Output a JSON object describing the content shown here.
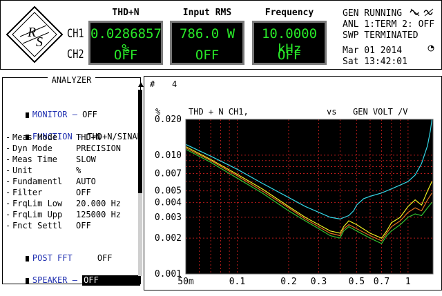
{
  "channels": [
    "CH1",
    "CH2"
  ],
  "meters": [
    {
      "header": "THD+N",
      "ch1": "0.0286857 %",
      "ch2": "OFF"
    },
    {
      "header": "Input RMS",
      "ch1": "786.0  W",
      "ch2": "OFF"
    },
    {
      "header": "Frequency",
      "ch1": "10.0000 kHz",
      "ch2": "OFF"
    }
  ],
  "status": {
    "gen": "GEN RUNNING",
    "anl": "ANL 1:TERM 2: OFF",
    "swp": "SWP TERMINATED",
    "date": "Mar 01 2014",
    "time": "Sat 13:42:01"
  },
  "analyzer": {
    "title": "ANALYZER",
    "monitor": {
      "label": "MONITOR",
      "value": "OFF"
    },
    "function": {
      "label": "FUNCTION",
      "value": "THD+N/SINAD"
    },
    "params": [
      {
        "label": "Meas Mode",
        "value": "THD+N"
      },
      {
        "label": "Dyn Mode",
        "value": "PRECISION"
      },
      {
        "label": "Meas Time",
        "value": "SLOW"
      },
      {
        "label": "Unit",
        "value": "%"
      },
      {
        "label": "Fundamentl",
        "value": "AUTO"
      },
      {
        "label": "Filter",
        "value": "OFF"
      },
      {
        "label": "FrqLim Low",
        "value": "20.000 Hz"
      },
      {
        "label": "FrqLim Upp",
        "value": "125000 Hz"
      },
      {
        "label": "Fnct Settl",
        "value": "OFF"
      }
    ],
    "post_fft": {
      "label": "POST FFT",
      "value": "OFF"
    },
    "speaker": {
      "label": "SPEAKER",
      "value": "OFF"
    }
  },
  "graph": {
    "index_label": "#",
    "index_value": "4",
    "unit": "%",
    "trace_label": "THD + N CH1,",
    "vs": "vs",
    "x_label": "GEN VOLT /V"
  },
  "chart_data": {
    "type": "line",
    "xscale": "log",
    "yscale": "log",
    "xlim": [
      0.05,
      1.4
    ],
    "ylim": [
      0.001,
      0.02
    ],
    "x_ticks": [
      {
        "v": 0.05,
        "t": "50m"
      },
      {
        "v": 0.1,
        "t": "0.1"
      },
      {
        "v": 0.2,
        "t": "0.2"
      },
      {
        "v": 0.3,
        "t": "0.3"
      },
      {
        "v": 0.5,
        "t": "0.5"
      },
      {
        "v": 0.7,
        "t": "0.7"
      },
      {
        "v": 1.0,
        "t": "1"
      }
    ],
    "y_ticks": [
      {
        "v": 0.02,
        "t": "0.020"
      },
      {
        "v": 0.01,
        "t": "0.010"
      },
      {
        "v": 0.007,
        "t": "0.007"
      },
      {
        "v": 0.005,
        "t": "0.005"
      },
      {
        "v": 0.004,
        "t": "0.004"
      },
      {
        "v": 0.003,
        "t": "0.003"
      },
      {
        "v": 0.002,
        "t": "0.002"
      },
      {
        "v": 0.001,
        "t": "0.001"
      }
    ],
    "grid": true,
    "series": [
      {
        "color": "#33d6e6",
        "x": [
          0.05,
          0.07,
          0.1,
          0.14,
          0.2,
          0.25,
          0.3,
          0.35,
          0.4,
          0.45,
          0.48,
          0.5,
          0.55,
          0.6,
          0.7,
          0.8,
          0.9,
          1.0,
          1.1,
          1.2,
          1.3,
          1.35,
          1.38
        ],
        "y": [
          0.0123,
          0.0098,
          0.0076,
          0.0058,
          0.0044,
          0.0037,
          0.0033,
          0.003,
          0.0029,
          0.0031,
          0.0034,
          0.0038,
          0.0043,
          0.0045,
          0.0048,
          0.0052,
          0.0056,
          0.006,
          0.0068,
          0.0085,
          0.012,
          0.016,
          0.02
        ]
      },
      {
        "color": "#f0f020",
        "x": [
          0.05,
          0.07,
          0.1,
          0.14,
          0.2,
          0.25,
          0.3,
          0.35,
          0.4,
          0.42,
          0.45,
          0.5,
          0.6,
          0.7,
          0.75,
          0.8,
          0.9,
          1.0,
          1.1,
          1.2,
          1.3,
          1.38
        ],
        "y": [
          0.0118,
          0.0092,
          0.0069,
          0.0052,
          0.0037,
          0.003,
          0.0026,
          0.0023,
          0.0022,
          0.0025,
          0.0028,
          0.0026,
          0.0022,
          0.002,
          0.0023,
          0.0027,
          0.003,
          0.0037,
          0.0042,
          0.0038,
          0.005,
          0.006
        ]
      },
      {
        "color": "#e07020",
        "x": [
          0.05,
          0.07,
          0.1,
          0.14,
          0.2,
          0.25,
          0.3,
          0.35,
          0.4,
          0.42,
          0.45,
          0.5,
          0.6,
          0.7,
          0.75,
          0.8,
          0.9,
          1.0,
          1.1,
          1.2,
          1.3,
          1.38
        ],
        "y": [
          0.0115,
          0.009,
          0.0067,
          0.005,
          0.0036,
          0.0029,
          0.0025,
          0.0022,
          0.0021,
          0.0024,
          0.0026,
          0.0024,
          0.0021,
          0.0019,
          0.0022,
          0.0025,
          0.0028,
          0.0033,
          0.0036,
          0.0034,
          0.0042,
          0.0048
        ]
      },
      {
        "color": "#30c030",
        "x": [
          0.05,
          0.07,
          0.1,
          0.14,
          0.2,
          0.25,
          0.3,
          0.35,
          0.4,
          0.42,
          0.45,
          0.5,
          0.6,
          0.7,
          0.75,
          0.8,
          0.9,
          1.0,
          1.1,
          1.2,
          1.3,
          1.38
        ],
        "y": [
          0.0112,
          0.0087,
          0.0064,
          0.0048,
          0.0034,
          0.0028,
          0.0024,
          0.0021,
          0.002,
          0.0023,
          0.0025,
          0.0023,
          0.002,
          0.0018,
          0.0021,
          0.0023,
          0.0026,
          0.003,
          0.0032,
          0.0031,
          0.0036,
          0.004
        ]
      }
    ]
  }
}
